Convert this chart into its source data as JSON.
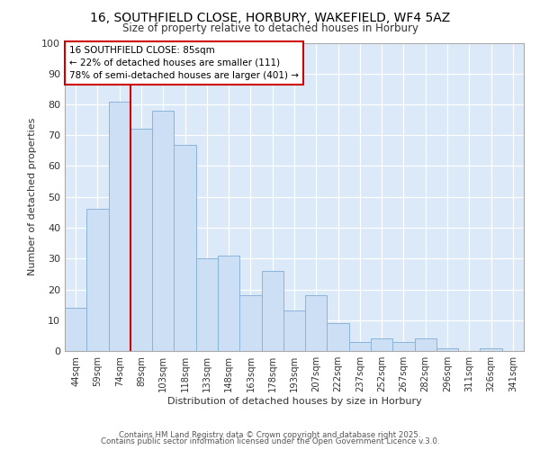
{
  "title1": "16, SOUTHFIELD CLOSE, HORBURY, WAKEFIELD, WF4 5AZ",
  "title2": "Size of property relative to detached houses in Horbury",
  "xlabel": "Distribution of detached houses by size in Horbury",
  "ylabel": "Number of detached properties",
  "categories": [
    "44sqm",
    "59sqm",
    "74sqm",
    "89sqm",
    "103sqm",
    "118sqm",
    "133sqm",
    "148sqm",
    "163sqm",
    "178sqm",
    "193sqm",
    "207sqm",
    "222sqm",
    "237sqm",
    "252sqm",
    "267sqm",
    "282sqm",
    "296sqm",
    "311sqm",
    "326sqm",
    "341sqm"
  ],
  "values": [
    14,
    46,
    81,
    72,
    78,
    67,
    30,
    31,
    18,
    26,
    13,
    18,
    9,
    3,
    4,
    3,
    4,
    1,
    0,
    1,
    0
  ],
  "bar_color": "#ccdff5",
  "bar_edge_color": "#8ab4d9",
  "vline_color": "#cc0000",
  "annotation_text": "16 SOUTHFIELD CLOSE: 85sqm\n← 22% of detached houses are smaller (111)\n78% of semi-detached houses are larger (401) →",
  "annotation_box_color": "#ffffff",
  "annotation_box_edge": "#cc0000",
  "ylim": [
    0,
    100
  ],
  "yticks": [
    0,
    10,
    20,
    30,
    40,
    50,
    60,
    70,
    80,
    90,
    100
  ],
  "bg_color": "#dce9f8",
  "grid_color": "#ffffff",
  "fig_bg_color": "#ffffff",
  "footer1": "Contains HM Land Registry data © Crown copyright and database right 2025.",
  "footer2": "Contains public sector information licensed under the Open Government Licence v.3.0."
}
